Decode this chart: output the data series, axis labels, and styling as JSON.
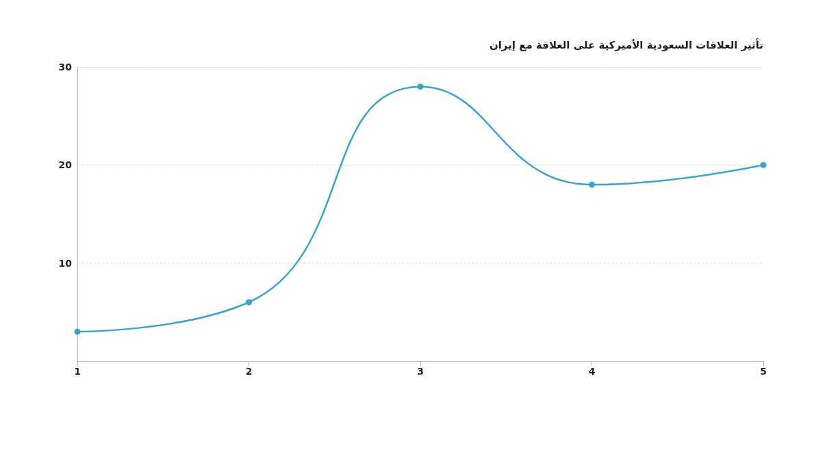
{
  "chart_data": {
    "type": "line",
    "title": "تأثير العلاقات السعودية الأميركية على العلاقة مع إيران",
    "x": [
      1,
      2,
      3,
      4,
      5
    ],
    "series": [
      {
        "color": "#3ba3d0",
        "values": [
          3,
          6,
          28,
          18,
          20
        ]
      }
    ],
    "xlim": [
      1,
      5
    ],
    "xticks": [
      1,
      2,
      3,
      4,
      5
    ],
    "ylim": [
      0,
      30
    ],
    "yticks": [
      {
        "value": 0,
        "label": null
      },
      10,
      20,
      30
    ],
    "grid": "y",
    "marker": "circle",
    "line_style": "solid"
  }
}
